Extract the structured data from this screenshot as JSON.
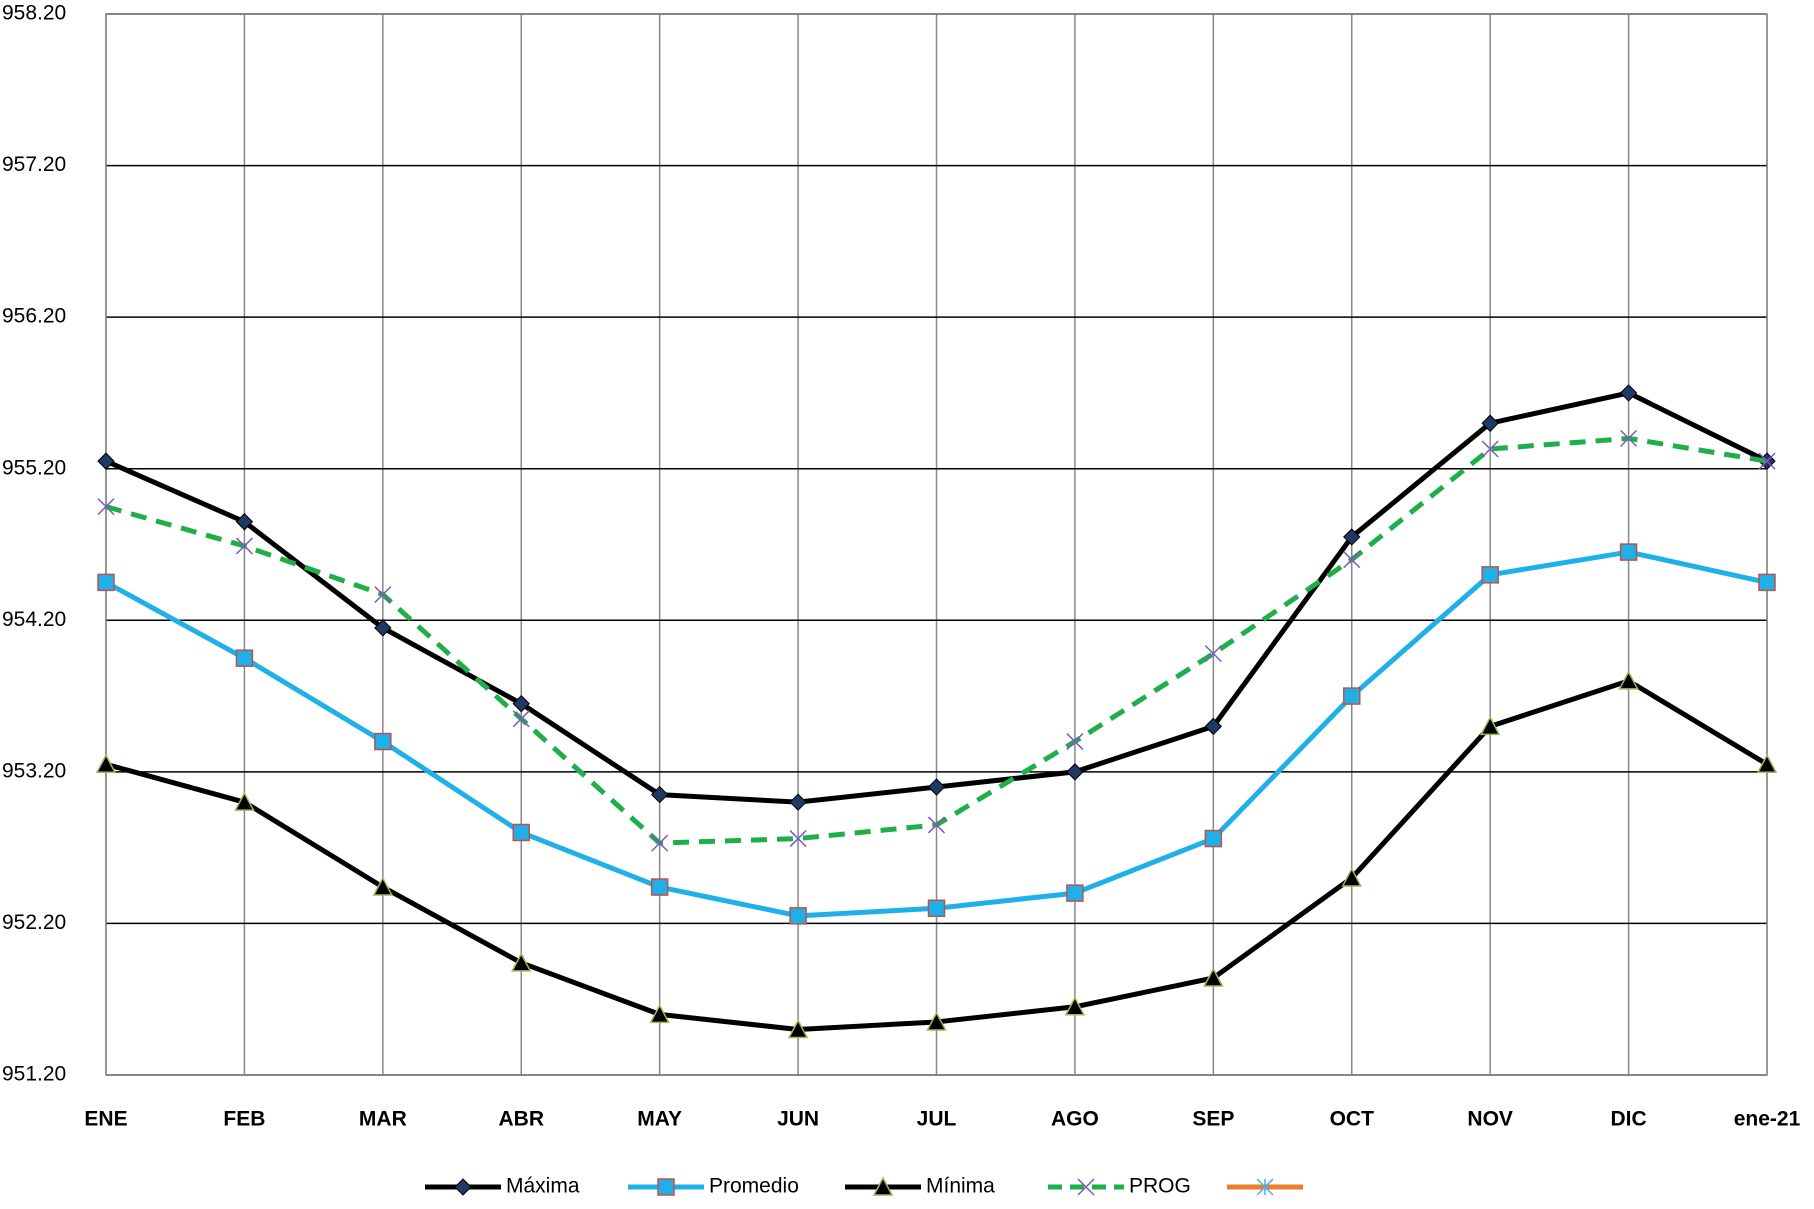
{
  "chart_data": {
    "type": "line",
    "categories": [
      "ENE",
      "FEB",
      "MAR",
      "ABR",
      "MAY",
      "JUN",
      "JUL",
      "AGO",
      "SEP",
      "OCT",
      "NOV",
      "DIC",
      "ene-21"
    ],
    "series": [
      {
        "name": "Máxima",
        "color": "#000000",
        "marker": "diamond",
        "marker_color": "#1f3864",
        "values": [
          955.25,
          954.85,
          954.15,
          953.65,
          953.05,
          953.0,
          953.1,
          953.2,
          953.5,
          954.75,
          955.5,
          955.7,
          955.25
        ]
      },
      {
        "name": "Promedio",
        "color": "#1fb0e8",
        "marker": "square",
        "marker_color": "#1fb0e8",
        "values": [
          954.45,
          953.95,
          953.4,
          952.8,
          952.44,
          952.25,
          952.3,
          952.4,
          952.76,
          953.7,
          954.5,
          954.65,
          954.45
        ]
      },
      {
        "name": "Mínima",
        "color": "#000000",
        "marker": "triangle",
        "marker_color": "#000000",
        "values": [
          953.25,
          953.0,
          952.44,
          951.94,
          951.6,
          951.5,
          951.55,
          951.65,
          951.84,
          952.5,
          953.5,
          953.8,
          953.25
        ]
      },
      {
        "name": "PROG",
        "color": "#1fae4a",
        "dashed": true,
        "marker": "x",
        "marker_color": "#7e57c2",
        "values": [
          954.95,
          954.69,
          954.37,
          953.55,
          952.73,
          952.76,
          952.85,
          953.4,
          953.98,
          954.6,
          955.33,
          955.4,
          955.25
        ]
      },
      {
        "color": "#ed7d31",
        "marker": "star",
        "marker_color": "#40b4e8",
        "values": [
          null,
          null,
          null,
          null,
          null,
          null,
          null,
          null,
          null,
          null,
          null,
          null,
          null
        ]
      }
    ],
    "ylim": [
      951.2,
      958.2
    ],
    "yticks": [
      {
        "value": 951.2,
        "label": "951.20"
      },
      {
        "value": 952.2,
        "label": "952.20"
      },
      {
        "value": 953.2,
        "label": "953.20"
      },
      {
        "value": 954.2,
        "label": "954.20"
      },
      {
        "value": 955.2,
        "label": "955.20"
      },
      {
        "value": 956.2,
        "label": "956.20"
      },
      {
        "value": 957.2,
        "label": "957.20"
      },
      {
        "value": 958.2,
        "label": "958.20"
      }
    ],
    "grid": true,
    "legend": "bottom"
  }
}
